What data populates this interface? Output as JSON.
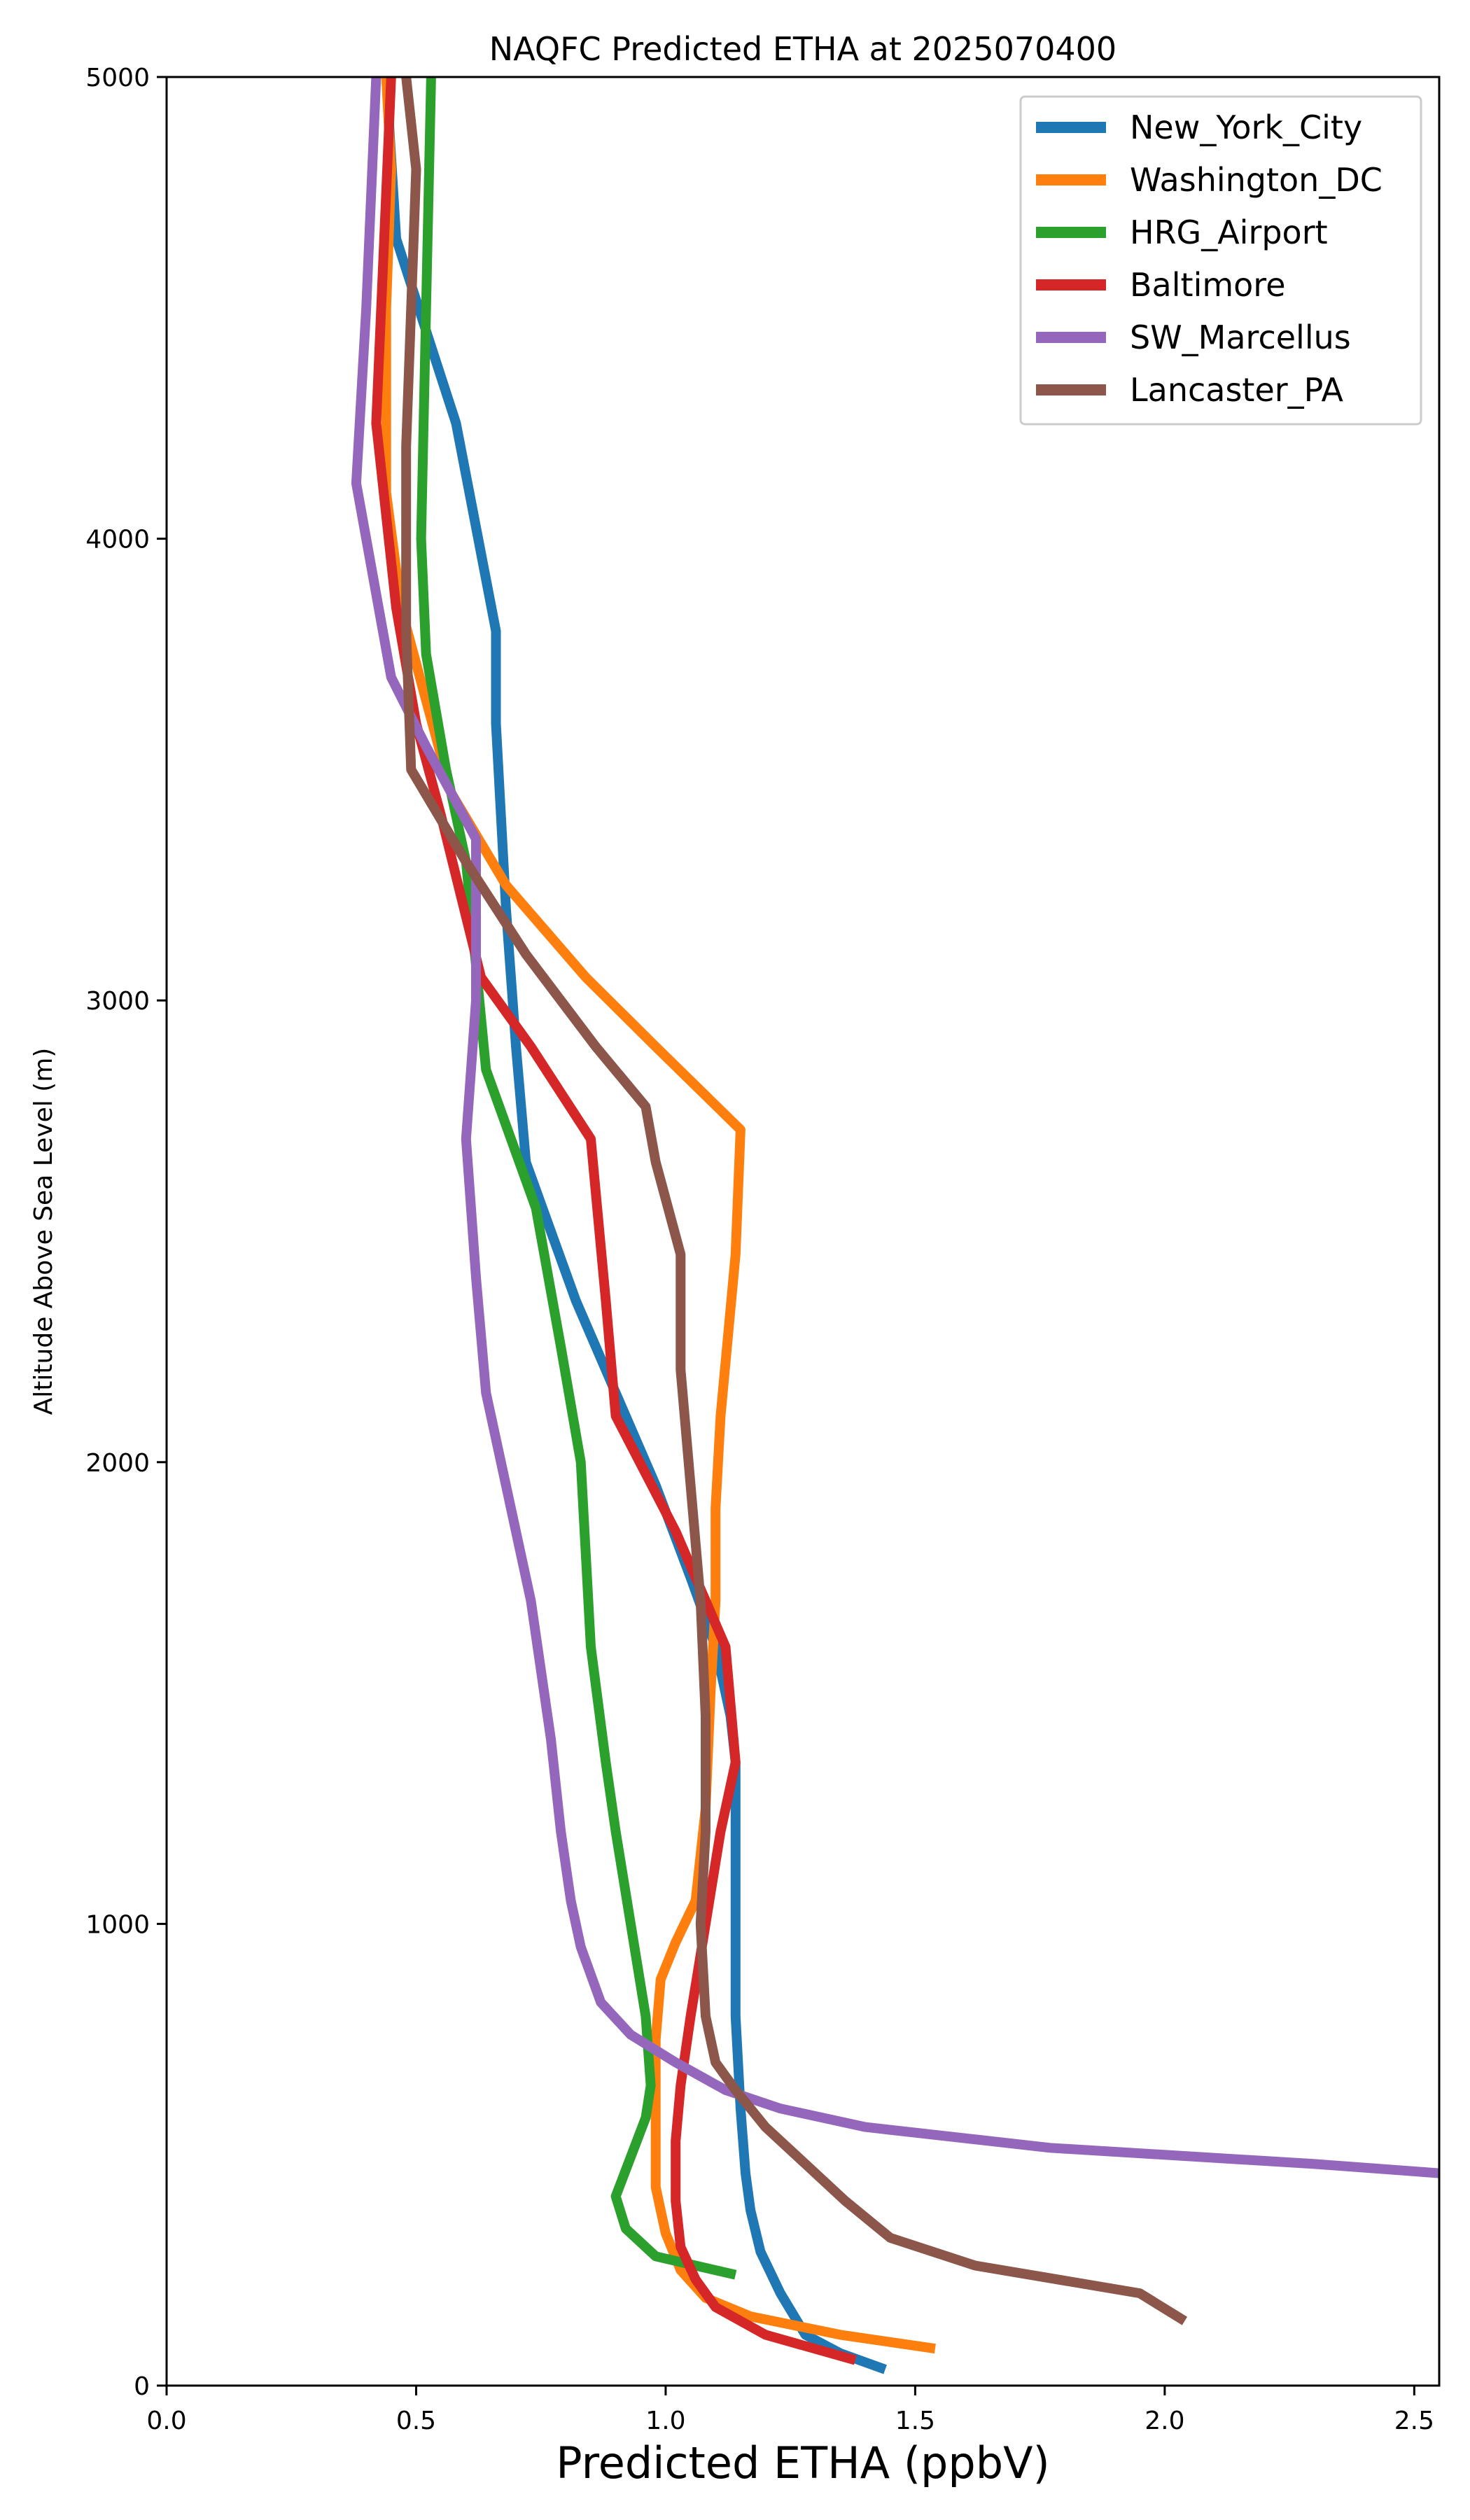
{
  "chart_data": {
    "type": "line",
    "title": "NAQFC Predicted ETHA at 2025070400",
    "xlabel": "Predicted ETHA (ppbV)",
    "ylabel": "Altitude Above Sea Level (m)",
    "xlim": [
      0.0,
      2.55
    ],
    "ylim": [
      0,
      5000
    ],
    "xticks": [
      0.0,
      0.5,
      1.0,
      1.5,
      2.0,
      2.5
    ],
    "xtick_labels": [
      "0.0",
      "0.5",
      "1.0",
      "1.5",
      "2.0",
      "2.5"
    ],
    "yticks": [
      0,
      1000,
      2000,
      3000,
      4000,
      5000
    ],
    "ytick_labels": [
      "0",
      "1000",
      "2000",
      "3000",
      "4000",
      "5000"
    ],
    "grid": false,
    "legend_position": "top-right",
    "series": [
      {
        "name": "New_York_City",
        "color": "#1f77b4",
        "points": [
          [
            1.44,
            35
          ],
          [
            1.35,
            70
          ],
          [
            1.28,
            110
          ],
          [
            1.23,
            200
          ],
          [
            1.19,
            290
          ],
          [
            1.17,
            380
          ],
          [
            1.16,
            460
          ],
          [
            1.15,
            600
          ],
          [
            1.14,
            800
          ],
          [
            1.14,
            1000
          ],
          [
            1.14,
            1200
          ],
          [
            1.14,
            1350
          ],
          [
            1.13,
            1450
          ],
          [
            1.1,
            1600
          ],
          [
            1.05,
            1750
          ],
          [
            0.98,
            1950
          ],
          [
            0.9,
            2150
          ],
          [
            0.82,
            2350
          ],
          [
            0.72,
            2650
          ],
          [
            0.7,
            2900
          ],
          [
            0.68,
            3200
          ],
          [
            0.66,
            3600
          ],
          [
            0.66,
            3800
          ],
          [
            0.58,
            4250
          ],
          [
            0.46,
            4650
          ],
          [
            0.44,
            5000
          ]
        ]
      },
      {
        "name": "Washington_DC",
        "color": "#ff7f0e",
        "points": [
          [
            1.54,
            80
          ],
          [
            1.35,
            110
          ],
          [
            1.17,
            150
          ],
          [
            1.08,
            190
          ],
          [
            1.03,
            250
          ],
          [
            1.0,
            330
          ],
          [
            0.98,
            430
          ],
          [
            0.98,
            600
          ],
          [
            0.98,
            750
          ],
          [
            0.99,
            880
          ],
          [
            1.02,
            960
          ],
          [
            1.06,
            1050
          ],
          [
            1.08,
            1250
          ],
          [
            1.09,
            1500
          ],
          [
            1.1,
            1700
          ],
          [
            1.1,
            1900
          ],
          [
            1.11,
            2100
          ],
          [
            1.14,
            2450
          ],
          [
            1.15,
            2720
          ],
          [
            0.98,
            2900
          ],
          [
            0.84,
            3050
          ],
          [
            0.68,
            3250
          ],
          [
            0.57,
            3450
          ],
          [
            0.52,
            3650
          ],
          [
            0.47,
            3850
          ],
          [
            0.44,
            4100
          ],
          [
            0.44,
            4500
          ],
          [
            0.45,
            4800
          ],
          [
            0.44,
            5000
          ]
        ]
      },
      {
        "name": "HRG_Airport",
        "color": "#2ca02c",
        "points": [
          [
            1.14,
            240
          ],
          [
            0.98,
            280
          ],
          [
            0.92,
            340
          ],
          [
            0.9,
            410
          ],
          [
            0.96,
            580
          ],
          [
            0.97,
            650
          ],
          [
            0.96,
            800
          ],
          [
            0.93,
            1000
          ],
          [
            0.9,
            1200
          ],
          [
            0.88,
            1350
          ],
          [
            0.85,
            1600
          ],
          [
            0.83,
            2000
          ],
          [
            0.79,
            2250
          ],
          [
            0.74,
            2550
          ],
          [
            0.64,
            2850
          ],
          [
            0.6,
            3300
          ],
          [
            0.56,
            3500
          ],
          [
            0.52,
            3750
          ],
          [
            0.51,
            4000
          ],
          [
            0.52,
            4500
          ],
          [
            0.53,
            5000
          ]
        ]
      },
      {
        "name": "Baltimore",
        "color": "#d62728",
        "points": [
          [
            1.38,
            55
          ],
          [
            1.2,
            110
          ],
          [
            1.1,
            170
          ],
          [
            1.06,
            230
          ],
          [
            1.03,
            300
          ],
          [
            1.02,
            400
          ],
          [
            1.02,
            530
          ],
          [
            1.03,
            650
          ],
          [
            1.05,
            800
          ],
          [
            1.08,
            1000
          ],
          [
            1.11,
            1200
          ],
          [
            1.14,
            1350
          ],
          [
            1.12,
            1600
          ],
          [
            1.02,
            1850
          ],
          [
            0.9,
            2100
          ],
          [
            0.88,
            2350
          ],
          [
            0.85,
            2700
          ],
          [
            0.73,
            2900
          ],
          [
            0.63,
            3050
          ],
          [
            0.55,
            3400
          ],
          [
            0.5,
            3600
          ],
          [
            0.46,
            3850
          ],
          [
            0.42,
            4250
          ],
          [
            0.44,
            4750
          ],
          [
            0.45,
            5000
          ]
        ]
      },
      {
        "name": "SW_Marcellus",
        "color": "#9467bd",
        "points": [
          [
            2.55,
            460
          ],
          [
            2.3,
            480
          ],
          [
            1.77,
            515
          ],
          [
            1.4,
            560
          ],
          [
            1.23,
            600
          ],
          [
            1.12,
            640
          ],
          [
            1.02,
            700
          ],
          [
            0.93,
            760
          ],
          [
            0.87,
            830
          ],
          [
            0.83,
            950
          ],
          [
            0.81,
            1050
          ],
          [
            0.79,
            1200
          ],
          [
            0.77,
            1400
          ],
          [
            0.73,
            1700
          ],
          [
            0.68,
            1950
          ],
          [
            0.64,
            2150
          ],
          [
            0.62,
            2400
          ],
          [
            0.6,
            2700
          ],
          [
            0.62,
            3000
          ],
          [
            0.62,
            3350
          ],
          [
            0.52,
            3550
          ],
          [
            0.45,
            3700
          ],
          [
            0.38,
            4120
          ],
          [
            0.4,
            4500
          ],
          [
            0.42,
            5000
          ]
        ]
      },
      {
        "name": "Lancaster_PA",
        "color": "#8c564b",
        "points": [
          [
            2.04,
            140
          ],
          [
            1.95,
            200
          ],
          [
            1.62,
            260
          ],
          [
            1.45,
            320
          ],
          [
            1.36,
            400
          ],
          [
            1.28,
            480
          ],
          [
            1.2,
            560
          ],
          [
            1.14,
            640
          ],
          [
            1.1,
            700
          ],
          [
            1.08,
            800
          ],
          [
            1.07,
            1000
          ],
          [
            1.08,
            1200
          ],
          [
            1.08,
            1450
          ],
          [
            1.07,
            1700
          ],
          [
            1.03,
            2200
          ],
          [
            1.03,
            2450
          ],
          [
            0.98,
            2650
          ],
          [
            0.96,
            2770
          ],
          [
            0.86,
            2900
          ],
          [
            0.72,
            3100
          ],
          [
            0.6,
            3300
          ],
          [
            0.49,
            3500
          ],
          [
            0.48,
            3800
          ],
          [
            0.48,
            4200
          ],
          [
            0.5,
            4800
          ],
          [
            0.48,
            5000
          ]
        ]
      }
    ]
  }
}
